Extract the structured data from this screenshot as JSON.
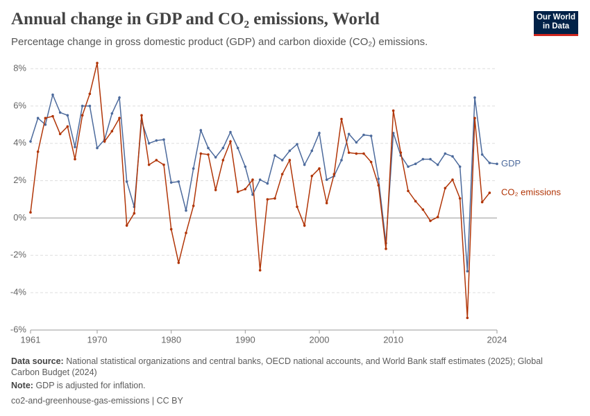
{
  "chart_data": {
    "type": "line",
    "title": "Annual change in GDP and CO₂ emissions, World",
    "subtitle": "Percentage change in gross domestic product (GDP) and carbon dioxide (CO₂) emissions.",
    "logo": [
      "Our World",
      "in Data"
    ],
    "x": [
      1961,
      1962,
      1963,
      1964,
      1965,
      1966,
      1967,
      1968,
      1969,
      1970,
      1971,
      1972,
      1973,
      1974,
      1975,
      1976,
      1977,
      1978,
      1979,
      1980,
      1981,
      1982,
      1983,
      1984,
      1985,
      1986,
      1987,
      1988,
      1989,
      1990,
      1991,
      1992,
      1993,
      1994,
      1995,
      1996,
      1997,
      1998,
      1999,
      2000,
      2001,
      2002,
      2003,
      2004,
      2005,
      2006,
      2007,
      2008,
      2009,
      2010,
      2011,
      2012,
      2013,
      2014,
      2015,
      2016,
      2017,
      2018,
      2019,
      2020,
      2021,
      2022,
      2023,
      2024
    ],
    "series": [
      {
        "name": "GDP",
        "color": "#4c6a9c",
        "values": [
          4.1,
          5.35,
          5.0,
          6.6,
          5.65,
          5.5,
          3.8,
          6.0,
          6.0,
          3.75,
          4.2,
          5.6,
          6.45,
          1.95,
          0.6,
          5.2,
          4.0,
          4.15,
          4.2,
          1.9,
          1.95,
          0.4,
          2.65,
          4.7,
          3.75,
          3.25,
          3.75,
          4.6,
          3.75,
          2.75,
          1.25,
          2.05,
          1.85,
          3.35,
          3.1,
          3.6,
          3.95,
          2.85,
          3.6,
          4.55,
          2.05,
          2.25,
          3.1,
          4.5,
          4.05,
          4.45,
          4.4,
          2.1,
          -1.35,
          4.55,
          3.35,
          2.75,
          2.9,
          3.15,
          3.15,
          2.85,
          3.45,
          3.3,
          2.75,
          -2.85,
          6.45,
          3.4,
          2.95,
          2.9
        ]
      },
      {
        "name": "CO₂ emissions",
        "color": "#b13507",
        "values": [
          0.3,
          3.55,
          5.35,
          5.45,
          4.5,
          4.9,
          3.15,
          5.5,
          6.65,
          8.3,
          4.1,
          4.65,
          5.35,
          -0.4,
          0.25,
          5.5,
          2.85,
          3.1,
          2.85,
          -0.6,
          -2.4,
          -0.8,
          0.65,
          3.45,
          3.4,
          1.5,
          3.1,
          4.1,
          1.4,
          1.55,
          2.05,
          -2.8,
          1.0,
          1.05,
          2.35,
          3.1,
          0.6,
          -0.4,
          2.25,
          2.65,
          0.8,
          2.35,
          5.3,
          3.5,
          3.45,
          3.45,
          3.0,
          1.75,
          -1.65,
          5.75,
          3.5,
          1.45,
          0.9,
          0.45,
          -0.15,
          0.05,
          1.6,
          2.05,
          1.05,
          -5.35,
          5.35,
          0.85,
          1.35,
          null
        ]
      }
    ],
    "xlim": [
      1961,
      2024
    ],
    "xticks": [
      1961,
      1970,
      1980,
      1990,
      2000,
      2010,
      2024
    ],
    "ylim": [
      -6,
      8
    ],
    "yticks": [
      {
        "value": -6,
        "label": "-6%"
      },
      {
        "value": -4,
        "label": "-4%"
      },
      {
        "value": -2,
        "label": "-2%"
      },
      {
        "value": 0,
        "label": "0%"
      },
      {
        "value": 2,
        "label": "2%"
      },
      {
        "value": 4,
        "label": "4%"
      },
      {
        "value": 6,
        "label": "6%"
      },
      {
        "value": 8,
        "label": "8%"
      }
    ],
    "grid": true,
    "source_label": "Data source:",
    "source": "National statistical organizations and central banks, OECD national accounts, and World Bank staff estimates (2025); Global Carbon Budget (2024)",
    "note_label": "Note:",
    "note": "GDP is adjusted for inflation.",
    "footer": "co2-and-greenhouse-gas-emissions | CC BY"
  }
}
